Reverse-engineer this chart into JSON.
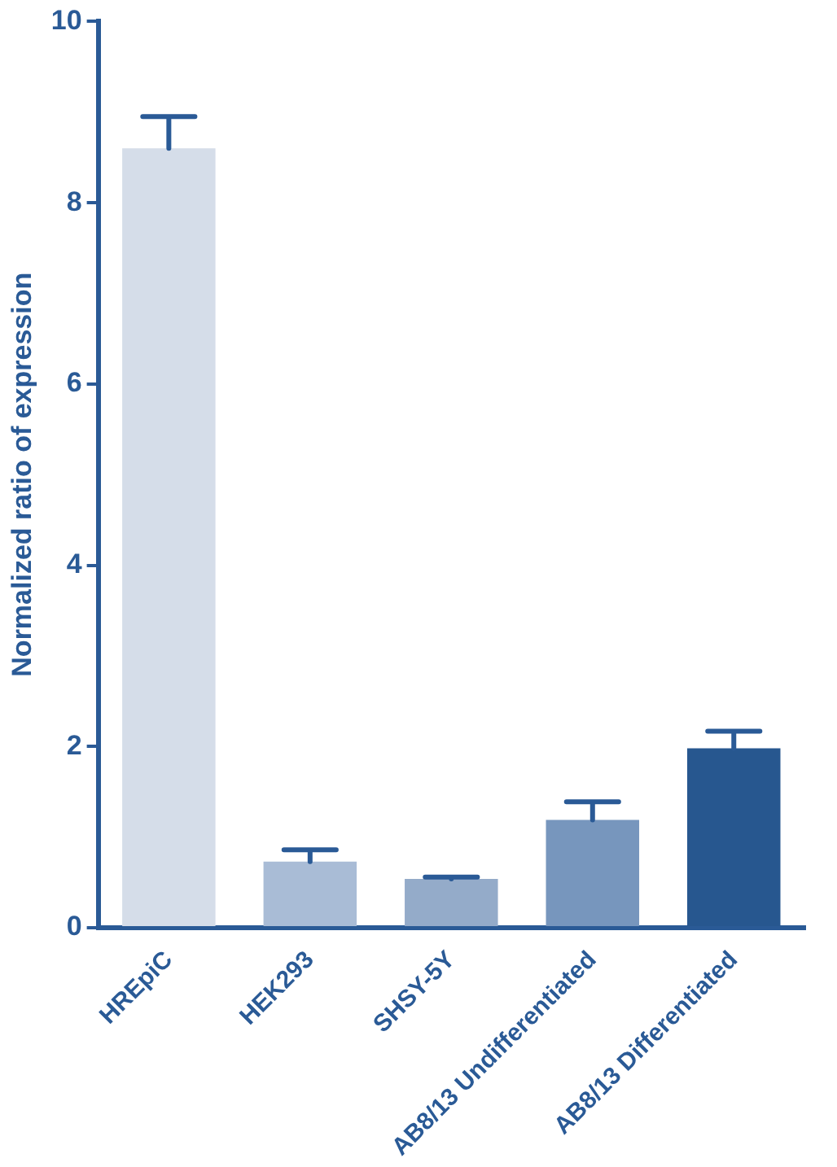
{
  "chart_data": {
    "type": "bar",
    "ylabel": "Normalized ratio of expression",
    "categories": [
      "HREpiC",
      "HEK293",
      "SHSY-5Y",
      "AB8/13 Undifferentiated",
      "AB8/13 Differentiated"
    ],
    "values": [
      8.6,
      0.73,
      0.54,
      1.19,
      1.98
    ],
    "colors": [
      "#d5dde9",
      "#a9bcd6",
      "#94abc9",
      "#7796bd",
      "#27578f"
    ],
    "errors": [
      0.35,
      0.13,
      0.02,
      0.2,
      0.19
    ],
    "ylim": [
      0,
      10
    ],
    "yticks": [
      0,
      2,
      4,
      6,
      8,
      10
    ],
    "grid": false,
    "legend": false
  }
}
